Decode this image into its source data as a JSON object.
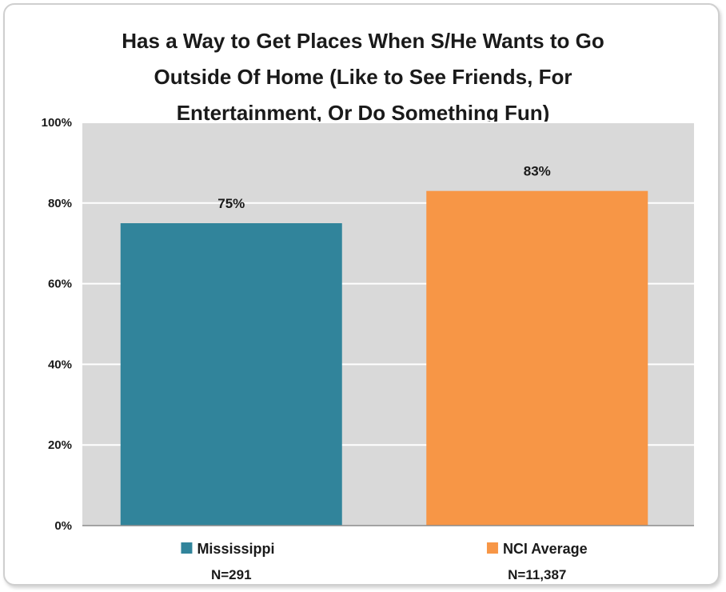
{
  "chart_data": {
    "type": "bar",
    "title_lines": [
      "Has a Way to Get Places When S/He Wants to Go",
      "Outside Of Home (Like to See Friends, For",
      "Entertainment, Or Do Something Fun)"
    ],
    "categories": [
      "Mississippi",
      "NCI Average"
    ],
    "category_notes": [
      "N=291",
      "N=11,387"
    ],
    "values": [
      75,
      83
    ],
    "data_labels": [
      "75%",
      "83%"
    ],
    "colors": [
      "#31849B",
      "#F79646"
    ],
    "y_ticks": [
      0,
      20,
      40,
      60,
      80,
      100
    ],
    "y_tick_labels": [
      "0%",
      "20%",
      "40%",
      "60%",
      "80%",
      "100%"
    ],
    "ylim": [
      0,
      100
    ],
    "grid": true,
    "plot_background": "#D9D9D9",
    "legend": "bottom"
  }
}
